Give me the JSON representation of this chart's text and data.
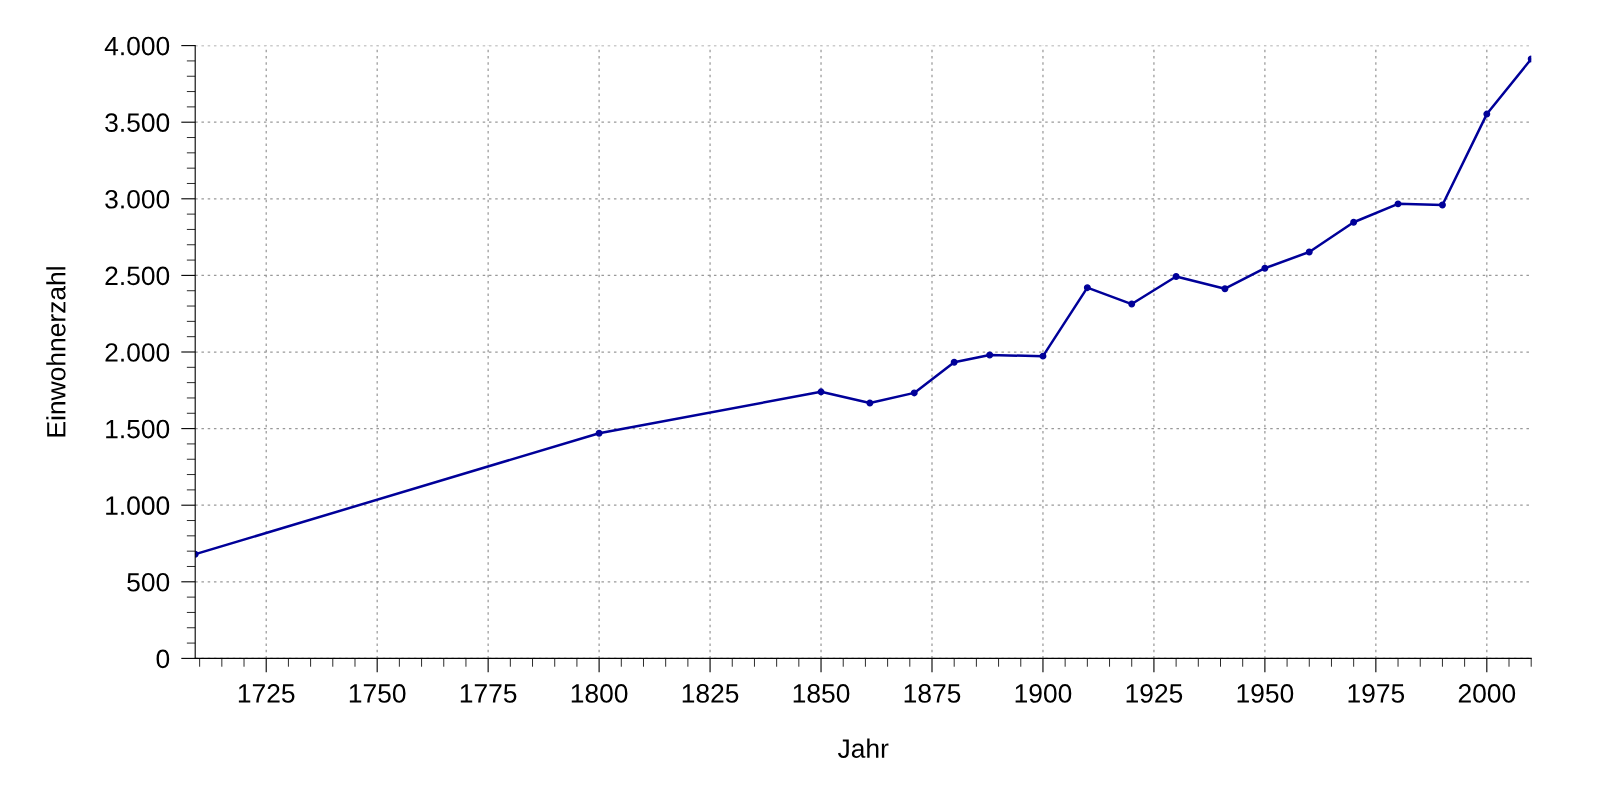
{
  "chart_data": {
    "type": "line",
    "xlabel": "Jahr",
    "ylabel": "Einwohnerzahl",
    "x": [
      1709,
      1800,
      1850,
      1861,
      1871,
      1880,
      1888,
      1900,
      1910,
      1920,
      1930,
      1941,
      1950,
      1960,
      1970,
      1980,
      1990,
      2000,
      2010
    ],
    "series": [
      {
        "color": "#000099",
        "values": [
          680,
          1470,
          1740,
          1667,
          1733,
          1933,
          1980,
          1973,
          2420,
          2313,
          2493,
          2413,
          2547,
          2653,
          2847,
          2967,
          2960,
          3553,
          3913
        ]
      }
    ],
    "xlim": [
      1709,
      2010
    ],
    "xticks": [
      1725,
      1750,
      1775,
      1800,
      1825,
      1850,
      1875,
      1900,
      1925,
      1950,
      1975,
      2000
    ],
    "ylim": [
      0,
      4000
    ],
    "yticks": [
      0,
      500,
      {
        "value": 1000,
        "label": "1.000"
      },
      {
        "value": 1500,
        "label": "1.500"
      },
      {
        "value": 2000,
        "label": "2.000"
      },
      {
        "value": 2500,
        "label": "2.500"
      },
      {
        "value": 3000,
        "label": "3.000"
      },
      {
        "value": 3500,
        "label": "3.500"
      },
      {
        "value": 4000,
        "label": "4.000"
      }
    ],
    "grid": true,
    "marker": "circle",
    "line_style": "solid"
  }
}
